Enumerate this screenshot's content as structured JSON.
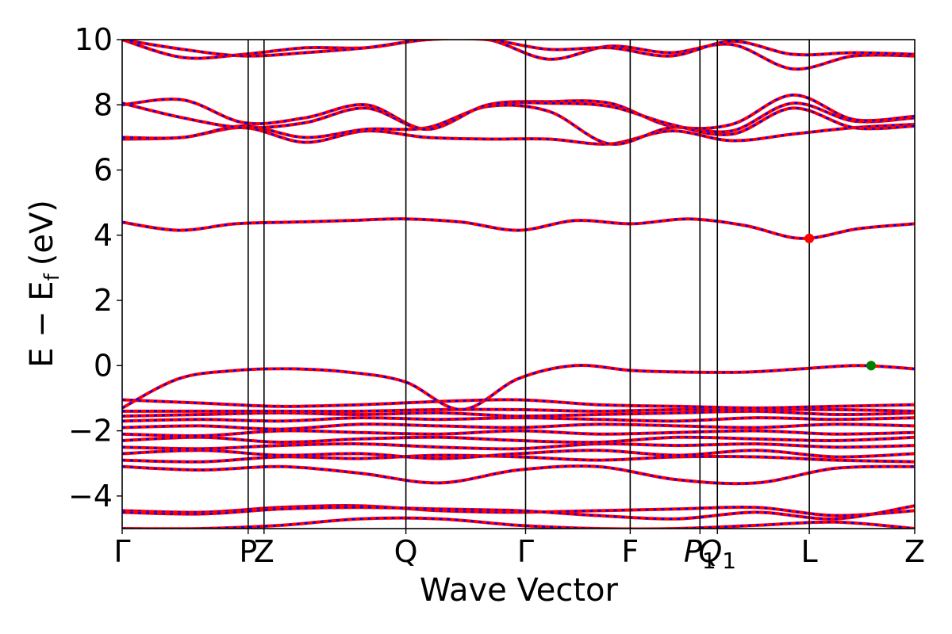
{
  "chart_data": {
    "type": "line",
    "xlabel": "Wave Vector",
    "ylabel": "E − E",
    "ylabel_sub": "f",
    "ylabel_unit": "(eV)",
    "ylim": [
      -5,
      10
    ],
    "xlim": [
      0,
      10
    ],
    "y_ticks": [
      {
        "value": 10,
        "label": "10"
      },
      {
        "value": 8,
        "label": "8"
      },
      {
        "value": 6,
        "label": "6"
      },
      {
        "value": 4,
        "label": "4"
      },
      {
        "value": 2,
        "label": "2"
      },
      {
        "value": 0,
        "label": "0"
      },
      {
        "value": -2,
        "label": "−2"
      },
      {
        "value": -4,
        "label": "−4"
      }
    ],
    "high_symmetry_points": [
      {
        "label": "Γ",
        "x": 0.0
      },
      {
        "label": "P",
        "x": 1.59
      },
      {
        "label": "Z",
        "x": 1.79
      },
      {
        "label": "Q",
        "x": 3.58
      },
      {
        "label": "Γ",
        "x": 5.09
      },
      {
        "label": "F",
        "x": 6.41
      },
      {
        "label": "P",
        "label_sub": "1",
        "x": 7.29
      },
      {
        "label": "Q",
        "label_sub": "1",
        "x": 7.51
      },
      {
        "label": "L",
        "x": 8.67
      },
      {
        "label": "Z",
        "x": 10.0
      }
    ],
    "band_style": {
      "line_color": "#ff0000",
      "dash_color": "#0000ff"
    },
    "series": [
      {
        "values": [
          -5.0,
          -5.0,
          -4.9,
          -4.7,
          -4.7,
          -4.9,
          -5.0,
          -5.0,
          -4.9,
          -4.8,
          -5.0
        ]
      },
      {
        "values": [
          -4.45,
          -4.5,
          -4.35,
          -4.3,
          -4.45,
          -4.5,
          -4.45,
          -4.4,
          -4.35,
          -4.6,
          -4.45
        ]
      },
      {
        "values": [
          -4.5,
          -4.55,
          -4.4,
          -4.35,
          -4.4,
          -4.45,
          -4.6,
          -4.7,
          -4.5,
          -4.7,
          -4.3
        ]
      },
      {
        "values": [
          -3.1,
          -3.2,
          -3.1,
          -3.3,
          -3.6,
          -3.2,
          -3.1,
          -3.5,
          -3.6,
          -3.15,
          -3.1
        ]
      },
      {
        "values": [
          -2.9,
          -2.95,
          -2.8,
          -2.85,
          -2.75,
          -2.8,
          -2.9,
          -2.8,
          -2.8,
          -2.9,
          -2.95
        ]
      },
      {
        "values": [
          -2.7,
          -2.6,
          -2.75,
          -2.7,
          -2.85,
          -2.7,
          -2.6,
          -2.75,
          -2.6,
          -2.8,
          -2.7
        ]
      },
      {
        "values": [
          -2.5,
          -2.55,
          -2.45,
          -2.4,
          -2.5,
          -2.55,
          -2.4,
          -2.45,
          -2.4,
          -2.5,
          -2.45
        ]
      },
      {
        "values": [
          -2.3,
          -2.2,
          -2.35,
          -2.25,
          -2.2,
          -2.3,
          -2.35,
          -2.2,
          -2.25,
          -2.3,
          -2.2
        ]
      },
      {
        "values": [
          -2.1,
          -2.15,
          -2.0,
          -2.05,
          -2.1,
          -2.0,
          -2.1,
          -2.05,
          -2.0,
          -2.1,
          -2.05
        ]
      },
      {
        "values": [
          -1.9,
          -1.85,
          -1.95,
          -1.8,
          -1.85,
          -1.9,
          -1.8,
          -1.85,
          -1.9,
          -1.8,
          -1.85
        ]
      },
      {
        "values": [
          -1.7,
          -1.65,
          -1.7,
          -1.6,
          -1.65,
          -1.6,
          -1.65,
          -1.7,
          -1.6,
          -1.65,
          -1.6
        ]
      },
      {
        "values": [
          -1.55,
          -1.5,
          -1.45,
          -1.5,
          -1.45,
          -1.55,
          -1.5,
          -1.45,
          -1.4,
          -1.5,
          -1.45
        ]
      },
      {
        "values": [
          -1.4,
          -1.4,
          -1.4,
          -1.4,
          -1.35,
          -1.35,
          -1.4,
          -1.35,
          -1.35,
          -1.35,
          -1.4
        ]
      },
      {
        "values": [
          -1.05,
          -1.15,
          -1.25,
          -1.2,
          -1.1,
          -1.05,
          -1.2,
          -1.25,
          -1.3,
          -1.25,
          -1.2
        ]
      },
      {
        "values": [
          -1.3,
          -0.4,
          -0.15,
          -0.1,
          -0.2,
          -0.5,
          -1.35,
          -0.4,
          0.0,
          -0.15,
          -0.2,
          -0.2,
          -0.1,
          0.0,
          -0.1
        ]
      },
      {
        "values": [
          4.4,
          4.15,
          4.35,
          4.4,
          4.45,
          4.5,
          4.4,
          4.15,
          4.45,
          4.35,
          4.5,
          4.3,
          3.9,
          4.2,
          4.35
        ]
      },
      {
        "values": [
          6.95,
          7.0,
          7.3,
          6.85,
          7.2,
          7.0,
          6.95,
          6.95,
          6.8,
          7.2,
          6.9,
          7.1,
          7.3,
          7.4
        ]
      },
      {
        "values": [
          7.0,
          7.0,
          7.35,
          7.0,
          7.25,
          7.3,
          7.95,
          7.8,
          6.8,
          7.3,
          7.2,
          8.05,
          7.5,
          7.6
        ]
      },
      {
        "values": [
          8.0,
          8.15,
          7.45,
          7.6,
          8.0,
          7.25,
          8.0,
          8.1,
          8.05,
          7.35,
          7.4,
          8.3,
          7.55,
          7.65
        ]
      },
      {
        "values": [
          8.05,
          7.6,
          7.3,
          7.45,
          7.9,
          7.25,
          8.0,
          8.05,
          7.95,
          7.4,
          7.1,
          7.9,
          7.3,
          7.35
        ]
      },
      {
        "values": [
          10.0,
          9.45,
          9.55,
          9.75,
          9.75,
          10.0,
          10.0,
          9.4,
          9.8,
          9.6,
          9.85,
          9.1,
          9.5,
          9.5
        ]
      },
      {
        "values": [
          10.0,
          9.7,
          9.5,
          9.6,
          9.75,
          10.0,
          10.0,
          9.7,
          9.75,
          9.5,
          9.95,
          9.55,
          9.6,
          9.55
        ]
      }
    ],
    "markers": [
      {
        "x": 8.67,
        "y": 3.9,
        "color": "#ff0000"
      },
      {
        "x": 9.45,
        "y": 0.0,
        "color": "#008000"
      }
    ]
  }
}
